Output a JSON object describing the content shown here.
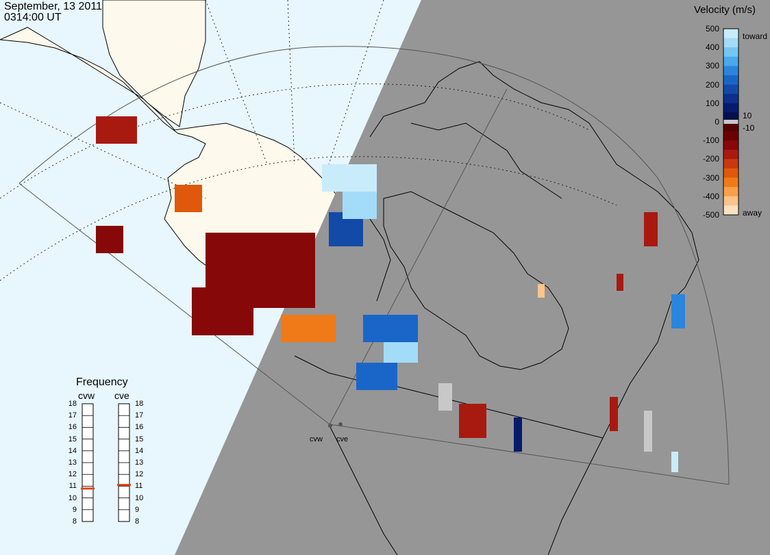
{
  "header": {
    "date": "September, 13 2011",
    "time": "0314:00 UT"
  },
  "colorbar": {
    "title": "Velocity (m/s)",
    "toward_label": "toward",
    "away_label": "away",
    "ticks_left": [
      "500",
      "400",
      "300",
      "200",
      "100",
      "0",
      "-100",
      "-200",
      "-300",
      "-400",
      "-500"
    ],
    "ticks_right": [
      "10",
      "-10"
    ],
    "colors_toward": [
      "#c9ecfb",
      "#a3dcf8",
      "#75c6f2",
      "#4aa9ea",
      "#2a86dc",
      "#1a66c8",
      "#134aa8",
      "#0c2f8a",
      "#061b6b",
      "#03104e"
    ],
    "colors_away": [
      "#520000",
      "#6a0000",
      "#860808",
      "#a81a10",
      "#c8380f",
      "#e0580b",
      "#f07a18",
      "#f9a04a",
      "#fcc48b",
      "#fde0c0"
    ]
  },
  "frequency": {
    "title": "Frequency",
    "radars": [
      {
        "name": "cvw",
        "freq": 10.8
      },
      {
        "name": "cve",
        "freq": 11.1
      }
    ],
    "ticks": [
      "18",
      "17",
      "16",
      "15",
      "14",
      "13",
      "12",
      "11",
      "10",
      "9",
      "8"
    ]
  },
  "stations": [
    "cvw",
    "cve"
  ],
  "colors": {
    "ocean": "#e8f6fd",
    "land": "#fdf9ec",
    "night": "#969696",
    "ground_scatter": "#c8c8c8",
    "freq_marker": "#e0450a"
  }
}
